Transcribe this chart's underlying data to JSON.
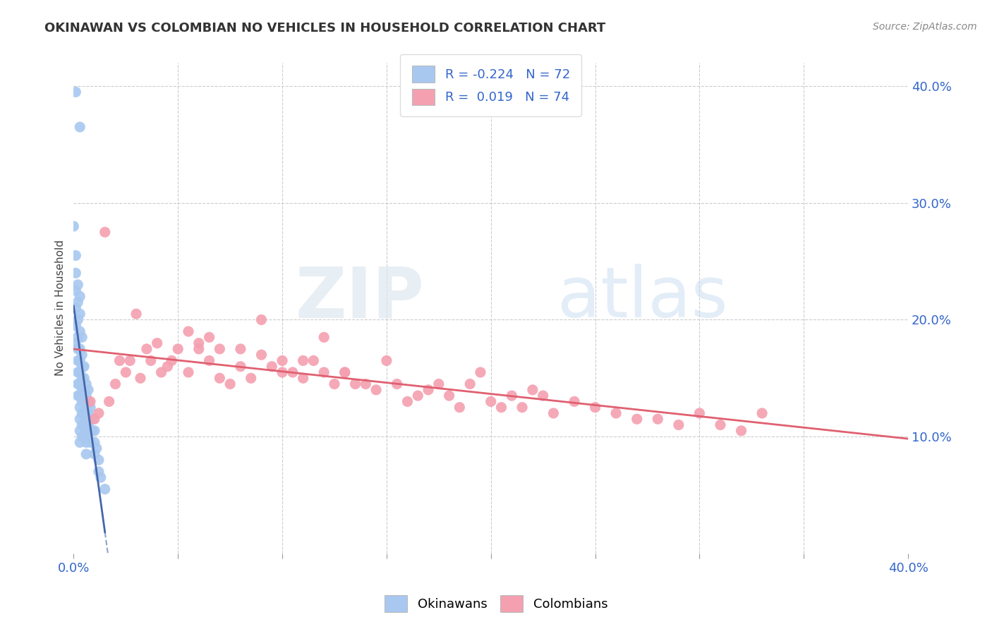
{
  "title": "OKINAWAN VS COLOMBIAN NO VEHICLES IN HOUSEHOLD CORRELATION CHART",
  "source": "Source: ZipAtlas.com",
  "ylabel": "No Vehicles in Household",
  "right_yticks": [
    "40.0%",
    "30.0%",
    "20.0%",
    "10.0%"
  ],
  "right_ytick_vals": [
    0.4,
    0.3,
    0.2,
    0.1
  ],
  "xmin": 0.0,
  "xmax": 0.4,
  "ymin": 0.0,
  "ymax": 0.42,
  "okinawan_R": -0.224,
  "okinawan_N": 72,
  "colombian_R": 0.019,
  "colombian_N": 74,
  "okinawan_color": "#a8c8f0",
  "colombian_color": "#f4a0b0",
  "okinawan_line_color": "#4466aa",
  "colombian_line_color": "#e8708080",
  "legend_label_okinawan": "Okinawans",
  "legend_label_colombian": "Colombians",
  "watermark_zip": "ZIP",
  "watermark_atlas": "atlas",
  "background_color": "#ffffff",
  "grid_color": "#cccccc",
  "okinawan_x": [
    0.001,
    0.003,
    0.0,
    0.001,
    0.001,
    0.001,
    0.001,
    0.001,
    0.001,
    0.002,
    0.002,
    0.002,
    0.002,
    0.002,
    0.002,
    0.002,
    0.002,
    0.002,
    0.003,
    0.003,
    0.003,
    0.003,
    0.003,
    0.003,
    0.003,
    0.003,
    0.003,
    0.003,
    0.003,
    0.003,
    0.004,
    0.004,
    0.004,
    0.004,
    0.004,
    0.004,
    0.004,
    0.004,
    0.004,
    0.005,
    0.005,
    0.005,
    0.005,
    0.005,
    0.005,
    0.005,
    0.006,
    0.006,
    0.006,
    0.006,
    0.006,
    0.006,
    0.006,
    0.007,
    0.007,
    0.007,
    0.007,
    0.007,
    0.008,
    0.008,
    0.008,
    0.008,
    0.009,
    0.009,
    0.01,
    0.01,
    0.01,
    0.011,
    0.012,
    0.012,
    0.013,
    0.015
  ],
  "okinawan_y": [
    0.395,
    0.365,
    0.28,
    0.255,
    0.24,
    0.225,
    0.21,
    0.195,
    0.18,
    0.23,
    0.215,
    0.2,
    0.185,
    0.175,
    0.165,
    0.155,
    0.145,
    0.135,
    0.22,
    0.205,
    0.19,
    0.175,
    0.165,
    0.155,
    0.145,
    0.135,
    0.125,
    0.115,
    0.105,
    0.095,
    0.185,
    0.17,
    0.16,
    0.15,
    0.14,
    0.13,
    0.12,
    0.11,
    0.1,
    0.16,
    0.15,
    0.14,
    0.13,
    0.12,
    0.11,
    0.1,
    0.145,
    0.135,
    0.125,
    0.115,
    0.105,
    0.095,
    0.085,
    0.14,
    0.13,
    0.12,
    0.11,
    0.1,
    0.125,
    0.115,
    0.105,
    0.095,
    0.115,
    0.105,
    0.105,
    0.095,
    0.085,
    0.09,
    0.08,
    0.07,
    0.065,
    0.055
  ],
  "colombian_x": [
    0.008,
    0.01,
    0.012,
    0.015,
    0.017,
    0.02,
    0.022,
    0.025,
    0.027,
    0.03,
    0.032,
    0.035,
    0.037,
    0.04,
    0.042,
    0.045,
    0.047,
    0.05,
    0.055,
    0.06,
    0.065,
    0.07,
    0.075,
    0.08,
    0.085,
    0.09,
    0.095,
    0.1,
    0.105,
    0.11,
    0.115,
    0.12,
    0.125,
    0.13,
    0.135,
    0.14,
    0.145,
    0.15,
    0.155,
    0.16,
    0.165,
    0.17,
    0.175,
    0.18,
    0.185,
    0.19,
    0.195,
    0.2,
    0.205,
    0.21,
    0.215,
    0.22,
    0.225,
    0.23,
    0.24,
    0.25,
    0.26,
    0.27,
    0.28,
    0.29,
    0.3,
    0.31,
    0.32,
    0.33,
    0.055,
    0.06,
    0.065,
    0.07,
    0.08,
    0.09,
    0.1,
    0.11,
    0.12,
    0.13
  ],
  "colombian_y": [
    0.13,
    0.115,
    0.12,
    0.275,
    0.13,
    0.145,
    0.165,
    0.155,
    0.165,
    0.205,
    0.15,
    0.175,
    0.165,
    0.18,
    0.155,
    0.16,
    0.165,
    0.175,
    0.155,
    0.18,
    0.165,
    0.15,
    0.145,
    0.16,
    0.15,
    0.17,
    0.16,
    0.165,
    0.155,
    0.15,
    0.165,
    0.155,
    0.145,
    0.155,
    0.145,
    0.145,
    0.14,
    0.165,
    0.145,
    0.13,
    0.135,
    0.14,
    0.145,
    0.135,
    0.125,
    0.145,
    0.155,
    0.13,
    0.125,
    0.135,
    0.125,
    0.14,
    0.135,
    0.12,
    0.13,
    0.125,
    0.12,
    0.115,
    0.115,
    0.11,
    0.12,
    0.11,
    0.105,
    0.12,
    0.19,
    0.175,
    0.185,
    0.175,
    0.175,
    0.2,
    0.155,
    0.165,
    0.185,
    0.155
  ]
}
